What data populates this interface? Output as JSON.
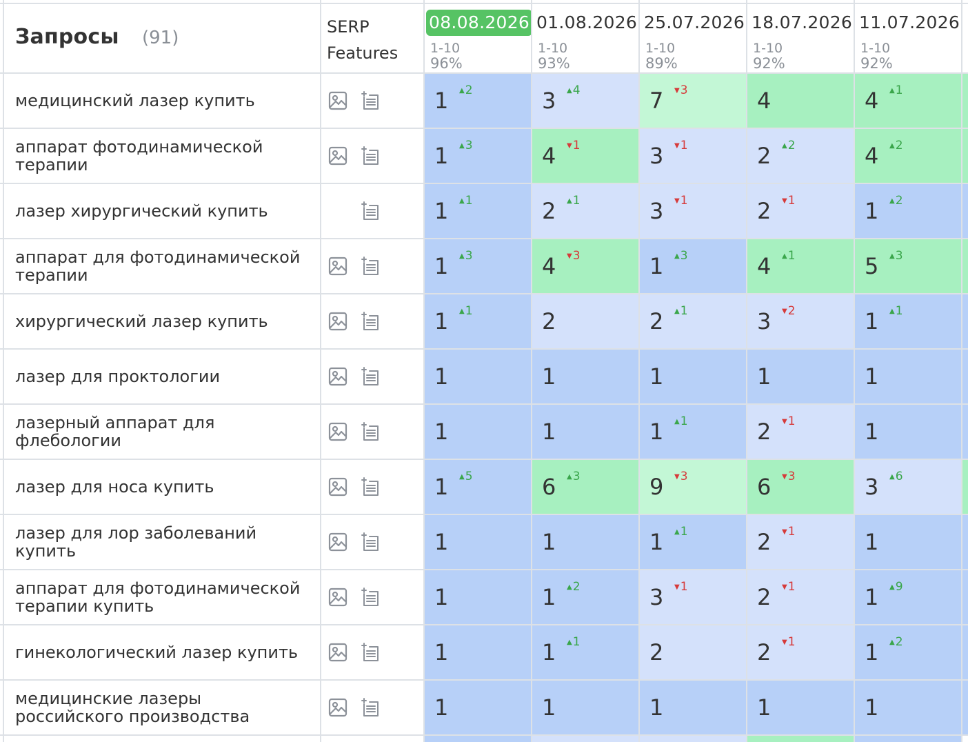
{
  "header": {
    "title": "Запросы",
    "count": "(91)",
    "serp_label": "SERP Features"
  },
  "dates": [
    {
      "date": "08.08.2026",
      "range": "1-10",
      "pct": "96%",
      "active": true
    },
    {
      "date": "01.08.2026",
      "range": "1-10",
      "pct": "93%",
      "active": false
    },
    {
      "date": "25.07.2026",
      "range": "1-10",
      "pct": "89%",
      "active": false
    },
    {
      "date": "18.07.2026",
      "range": "1-10",
      "pct": "92%",
      "active": false
    },
    {
      "date": "11.07.2026",
      "range": "1-10",
      "pct": "92%",
      "active": false
    }
  ],
  "icons": {
    "image": "image-icon",
    "list": "featured-list-icon"
  },
  "colors": {
    "pos1": "#b7d0f8",
    "pos2_3": "#d4e1fb",
    "pos4_6": "#a7f0c0",
    "pos7_9": "#c3f7d6",
    "up": "#3aa64b",
    "down": "#d63a3a",
    "active_date": "#56c364",
    "grid": "#dde1e6"
  },
  "rows": [
    {
      "query": "медицинский лазер купить",
      "features": [
        "image",
        "list"
      ],
      "cells": [
        {
          "pos": "1",
          "dir": "up",
          "chg": "2"
        },
        {
          "pos": "3",
          "dir": "up",
          "chg": "4"
        },
        {
          "pos": "7",
          "dir": "down",
          "chg": "3"
        },
        {
          "pos": "4",
          "dir": "",
          "chg": ""
        },
        {
          "pos": "4",
          "dir": "up",
          "chg": "1"
        }
      ]
    },
    {
      "query": "аппарат фотодинамической терапии",
      "features": [
        "image",
        "list"
      ],
      "cells": [
        {
          "pos": "1",
          "dir": "up",
          "chg": "3"
        },
        {
          "pos": "4",
          "dir": "down",
          "chg": "1"
        },
        {
          "pos": "3",
          "dir": "down",
          "chg": "1"
        },
        {
          "pos": "2",
          "dir": "up",
          "chg": "2"
        },
        {
          "pos": "4",
          "dir": "up",
          "chg": "2"
        }
      ]
    },
    {
      "query": "лазер хирургический купить",
      "features": [
        "list"
      ],
      "cells": [
        {
          "pos": "1",
          "dir": "up",
          "chg": "1"
        },
        {
          "pos": "2",
          "dir": "up",
          "chg": "1"
        },
        {
          "pos": "3",
          "dir": "down",
          "chg": "1"
        },
        {
          "pos": "2",
          "dir": "down",
          "chg": "1"
        },
        {
          "pos": "1",
          "dir": "up",
          "chg": "2"
        }
      ]
    },
    {
      "query": "аппарат для фотодинамической терапии",
      "features": [
        "image",
        "list"
      ],
      "cells": [
        {
          "pos": "1",
          "dir": "up",
          "chg": "3"
        },
        {
          "pos": "4",
          "dir": "down",
          "chg": "3"
        },
        {
          "pos": "1",
          "dir": "up",
          "chg": "3"
        },
        {
          "pos": "4",
          "dir": "up",
          "chg": "1"
        },
        {
          "pos": "5",
          "dir": "up",
          "chg": "3"
        }
      ]
    },
    {
      "query": "хирургический лазер купить",
      "features": [
        "image",
        "list"
      ],
      "cells": [
        {
          "pos": "1",
          "dir": "up",
          "chg": "1"
        },
        {
          "pos": "2",
          "dir": "",
          "chg": ""
        },
        {
          "pos": "2",
          "dir": "up",
          "chg": "1"
        },
        {
          "pos": "3",
          "dir": "down",
          "chg": "2"
        },
        {
          "pos": "1",
          "dir": "up",
          "chg": "1"
        }
      ]
    },
    {
      "query": "лазер для проктологии",
      "features": [
        "image",
        "list"
      ],
      "cells": [
        {
          "pos": "1",
          "dir": "",
          "chg": ""
        },
        {
          "pos": "1",
          "dir": "",
          "chg": ""
        },
        {
          "pos": "1",
          "dir": "",
          "chg": ""
        },
        {
          "pos": "1",
          "dir": "",
          "chg": ""
        },
        {
          "pos": "1",
          "dir": "",
          "chg": ""
        }
      ]
    },
    {
      "query": "лазерный аппарат для флебологии",
      "features": [
        "image",
        "list"
      ],
      "cells": [
        {
          "pos": "1",
          "dir": "",
          "chg": ""
        },
        {
          "pos": "1",
          "dir": "",
          "chg": ""
        },
        {
          "pos": "1",
          "dir": "up",
          "chg": "1"
        },
        {
          "pos": "2",
          "dir": "down",
          "chg": "1"
        },
        {
          "pos": "1",
          "dir": "",
          "chg": ""
        }
      ]
    },
    {
      "query": "лазер для носа купить",
      "features": [
        "image",
        "list"
      ],
      "cells": [
        {
          "pos": "1",
          "dir": "up",
          "chg": "5"
        },
        {
          "pos": "6",
          "dir": "up",
          "chg": "3"
        },
        {
          "pos": "9",
          "dir": "down",
          "chg": "3"
        },
        {
          "pos": "6",
          "dir": "down",
          "chg": "3"
        },
        {
          "pos": "3",
          "dir": "up",
          "chg": "6"
        }
      ]
    },
    {
      "query": "лазер для лор заболеваний купить",
      "features": [
        "image",
        "list"
      ],
      "cells": [
        {
          "pos": "1",
          "dir": "",
          "chg": ""
        },
        {
          "pos": "1",
          "dir": "",
          "chg": ""
        },
        {
          "pos": "1",
          "dir": "up",
          "chg": "1"
        },
        {
          "pos": "2",
          "dir": "down",
          "chg": "1"
        },
        {
          "pos": "1",
          "dir": "",
          "chg": ""
        }
      ]
    },
    {
      "query": "аппарат для фотодинамической терапии купить",
      "features": [
        "image",
        "list"
      ],
      "cells": [
        {
          "pos": "1",
          "dir": "",
          "chg": ""
        },
        {
          "pos": "1",
          "dir": "up",
          "chg": "2"
        },
        {
          "pos": "3",
          "dir": "down",
          "chg": "1"
        },
        {
          "pos": "2",
          "dir": "down",
          "chg": "1"
        },
        {
          "pos": "1",
          "dir": "up",
          "chg": "9"
        }
      ]
    },
    {
      "query": "гинекологический лазер купить",
      "features": [
        "image",
        "list"
      ],
      "cells": [
        {
          "pos": "1",
          "dir": "",
          "chg": ""
        },
        {
          "pos": "1",
          "dir": "up",
          "chg": "1"
        },
        {
          "pos": "2",
          "dir": "",
          "chg": ""
        },
        {
          "pos": "2",
          "dir": "down",
          "chg": "1"
        },
        {
          "pos": "1",
          "dir": "up",
          "chg": "2"
        }
      ]
    },
    {
      "query": "медицинские лазеры российского производства",
      "features": [
        "image",
        "list"
      ],
      "cells": [
        {
          "pos": "1",
          "dir": "",
          "chg": ""
        },
        {
          "pos": "1",
          "dir": "",
          "chg": ""
        },
        {
          "pos": "1",
          "dir": "",
          "chg": ""
        },
        {
          "pos": "1",
          "dir": "",
          "chg": ""
        },
        {
          "pos": "1",
          "dir": "",
          "chg": ""
        }
      ]
    }
  ]
}
